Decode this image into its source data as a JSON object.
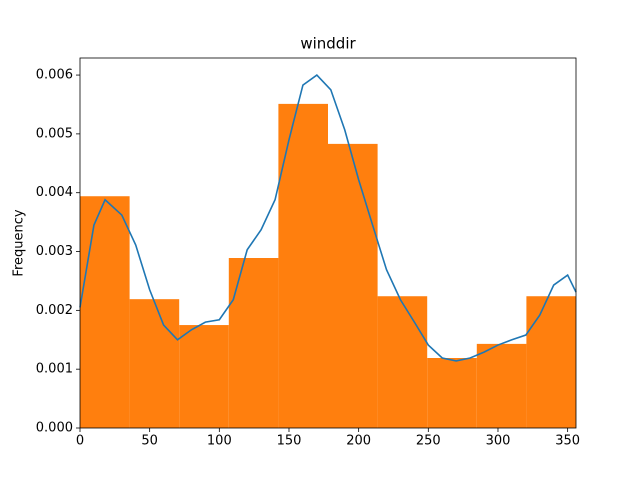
{
  "chart_data": {
    "type": "histogram",
    "title": "winddir",
    "ylabel": "Frequency",
    "bins": [
      0,
      35.6,
      71.2,
      106.8,
      142.4,
      178,
      213.6,
      249.2,
      284.8,
      320.4,
      356
    ],
    "counts": [
      0.00394,
      0.00219,
      0.00175,
      0.00289,
      0.00551,
      0.00483,
      0.00224,
      0.00119,
      0.00143,
      0.00224
    ],
    "color": "#ff7f0e",
    "kde": {
      "color": "#1f77b4",
      "x": [
        0,
        10,
        18,
        30,
        40,
        50,
        60,
        70,
        80,
        90,
        100,
        110,
        120,
        130,
        140,
        150,
        160,
        170,
        180,
        190,
        200,
        210,
        220,
        230,
        240,
        250,
        260,
        270,
        280,
        290,
        300,
        310,
        320,
        330,
        340,
        350,
        356
      ],
      "values": [
        0.00205,
        0.00345,
        0.00388,
        0.00362,
        0.00311,
        0.00235,
        0.00175,
        0.0015,
        0.00167,
        0.0018,
        0.00184,
        0.00218,
        0.00303,
        0.00337,
        0.00388,
        0.0049,
        0.00583,
        0.006,
        0.00575,
        0.00507,
        0.00422,
        0.00345,
        0.00269,
        0.00218,
        0.0018,
        0.00141,
        0.00119,
        0.00114,
        0.00119,
        0.00129,
        0.00141,
        0.0015,
        0.00158,
        0.00192,
        0.00243,
        0.0026,
        0.00231
      ]
    },
    "xlim": [
      0,
      356
    ],
    "xticks": [
      0,
      50,
      100,
      150,
      200,
      250,
      300,
      350
    ],
    "ylim": [
      0,
      0.00629
    ],
    "yticks": [
      {
        "value": 0,
        "label": "0.000"
      },
      {
        "value": 0.001,
        "label": "0.001"
      },
      {
        "value": 0.002,
        "label": "0.002"
      },
      {
        "value": 0.003,
        "label": "0.003"
      },
      {
        "value": 0.004,
        "label": "0.004"
      },
      {
        "value": 0.005,
        "label": "0.005"
      },
      {
        "value": 0.006,
        "label": "0.006"
      }
    ]
  }
}
